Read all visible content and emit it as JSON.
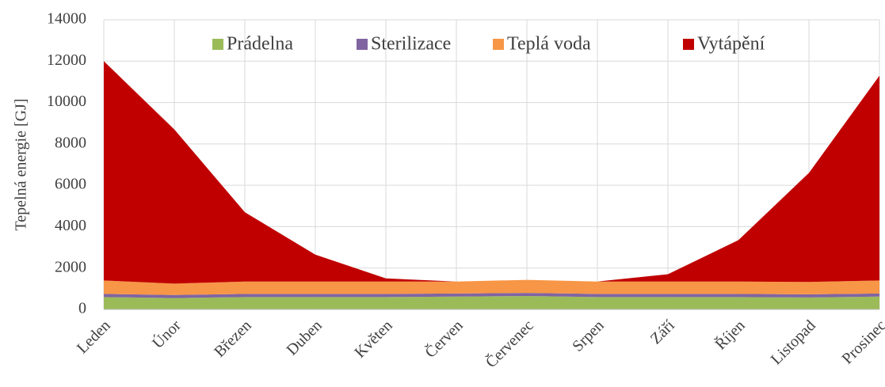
{
  "chart_data": {
    "type": "stacked_area",
    "ylabel": "Tepelná energie [GJ]",
    "categories": [
      "Leden",
      "Únor",
      "Březen",
      "Duben",
      "Květen",
      "Červen",
      "Červenec",
      "Srpen",
      "Září",
      "Říjen",
      "Listopad",
      "Prosinec"
    ],
    "series": [
      {
        "name": "Prádelna",
        "color": "#9bbb59",
        "values": [
          600,
          550,
          600,
          600,
          600,
          620,
          650,
          600,
          600,
          600,
          580,
          620
        ]
      },
      {
        "name": "Sterilizace",
        "color": "#8064a2",
        "values": [
          150,
          150,
          150,
          150,
          150,
          150,
          150,
          150,
          150,
          150,
          150,
          150
        ]
      },
      {
        "name": "Teplá voda",
        "color": "#f79646",
        "values": [
          650,
          550,
          600,
          600,
          600,
          580,
          630,
          600,
          600,
          600,
          600,
          630
        ]
      },
      {
        "name": "Vytápění",
        "color": "#c00000",
        "values": [
          10600,
          7450,
          3350,
          1300,
          150,
          0,
          0,
          0,
          350,
          2000,
          5270,
          9900
        ]
      }
    ],
    "ylim": [
      0,
      14000
    ],
    "yticks": [
      0,
      2000,
      4000,
      6000,
      8000,
      10000,
      12000,
      14000
    ],
    "grid": true,
    "legend": "top"
  }
}
